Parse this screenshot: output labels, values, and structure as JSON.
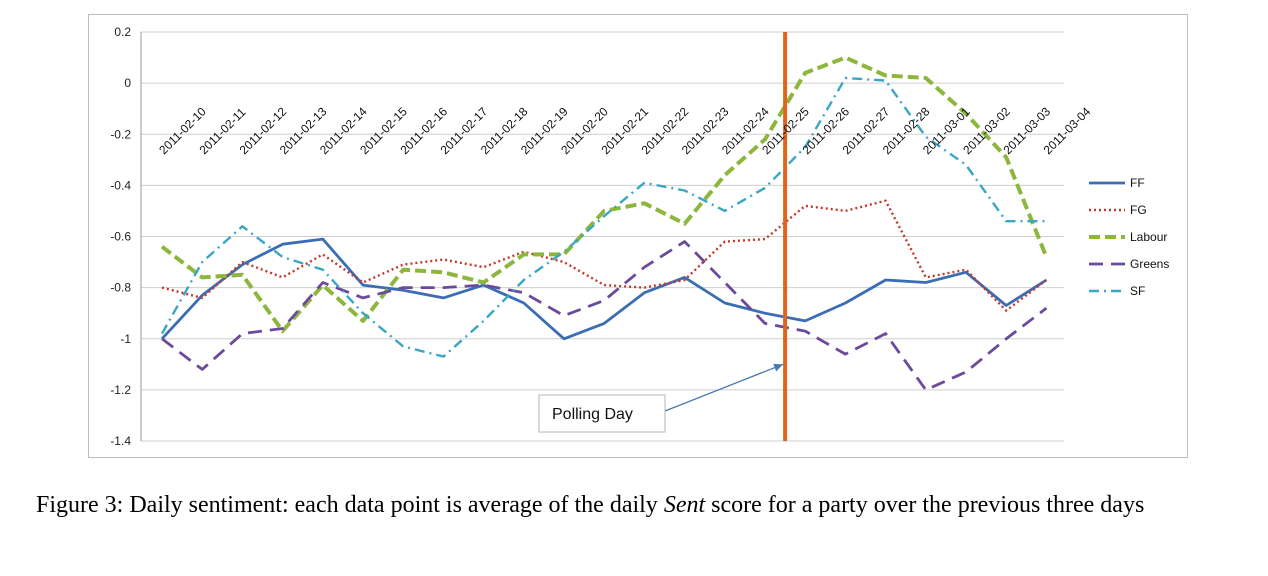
{
  "chart_data": {
    "type": "line",
    "title": "",
    "xlabel": "",
    "ylabel": "",
    "ylim": [
      -1.4,
      0.2
    ],
    "yticks": [
      0.2,
      0,
      -0.2,
      -0.4,
      -0.6,
      -0.8,
      -1,
      -1.2,
      -1.4
    ],
    "ytick_labels": [
      "0.2",
      "0",
      "-0.2",
      "-0.4",
      "-0.6",
      "-0.8",
      "-1",
      "-1.2",
      "-1.4"
    ],
    "grid": "horizontal",
    "legend_position": "right",
    "categories": [
      "2011-02-10",
      "2011-02-11",
      "2011-02-12",
      "2011-02-13",
      "2011-02-14",
      "2011-02-15",
      "2011-02-16",
      "2011-02-17",
      "2011-02-18",
      "2011-02-19",
      "2011-02-20",
      "2011-02-21",
      "2011-02-22",
      "2011-02-23",
      "2011-02-24",
      "2011-02-25",
      "2011-02-26",
      "2011-02-27",
      "2011-02-28",
      "2011-03-01",
      "2011-03-02",
      "2011-03-03",
      "2011-03-04"
    ],
    "series": [
      {
        "name": "FF",
        "color": "#3a6db5",
        "dash": "solid",
        "values": [
          -1.0,
          -0.83,
          -0.71,
          -0.63,
          -0.61,
          -0.79,
          -0.81,
          -0.84,
          -0.79,
          -0.86,
          -1.0,
          -0.94,
          -0.82,
          -0.76,
          -0.86,
          -0.9,
          -0.93,
          -0.86,
          -0.77,
          -0.78,
          -0.74,
          -0.87,
          -0.77
        ]
      },
      {
        "name": "FG",
        "color": "#c0392b",
        "dash": "dotted",
        "values": [
          -0.8,
          -0.84,
          -0.7,
          -0.76,
          -0.67,
          -0.78,
          -0.71,
          -0.69,
          -0.72,
          -0.66,
          -0.7,
          -0.79,
          -0.8,
          -0.77,
          -0.62,
          -0.61,
          -0.48,
          -0.5,
          -0.46,
          -0.76,
          -0.73,
          -0.89,
          -0.77
        ]
      },
      {
        "name": "Labour",
        "color": "#8cb63c",
        "dash": "dashed",
        "values": [
          -0.64,
          -0.76,
          -0.75,
          -0.97,
          -0.79,
          -0.93,
          -0.73,
          -0.74,
          -0.78,
          -0.67,
          -0.67,
          -0.5,
          -0.47,
          -0.55,
          -0.36,
          -0.22,
          0.04,
          0.1,
          0.03,
          0.02,
          -0.12,
          -0.29,
          -0.68
        ]
      },
      {
        "name": "Greens",
        "color": "#6b4a9c",
        "dash": "longdash",
        "values": [
          -1.0,
          -1.12,
          -0.98,
          -0.96,
          -0.78,
          -0.84,
          -0.8,
          -0.8,
          -0.79,
          -0.82,
          -0.91,
          -0.85,
          -0.72,
          -0.62,
          -0.78,
          -0.94,
          -0.97,
          -1.06,
          -0.98,
          -1.2,
          -1.13,
          -1.0,
          -0.88
        ]
      },
      {
        "name": "SF",
        "color": "#3aa6c4",
        "dash": "dashdot",
        "values": [
          -0.98,
          -0.7,
          -0.56,
          -0.68,
          -0.73,
          -0.9,
          -1.03,
          -1.07,
          -0.93,
          -0.77,
          -0.66,
          -0.52,
          -0.39,
          -0.42,
          -0.5,
          -0.41,
          -0.25,
          0.02,
          0.01,
          -0.21,
          -0.32,
          -0.54,
          -0.54
        ]
      }
    ],
    "vline": {
      "category": "2011-02-25",
      "offset": 0.5,
      "color": "#e0651b"
    },
    "annotation": {
      "text": "Polling Day",
      "target_category": "2011-02-25",
      "target_offset": 0.5,
      "target_y": -1.1
    }
  },
  "caption": {
    "prefix": "Figure 3: Daily sentiment: each data point is average of the daily ",
    "sent": "Sent",
    "suffix": " score for a party over the previous three days"
  }
}
